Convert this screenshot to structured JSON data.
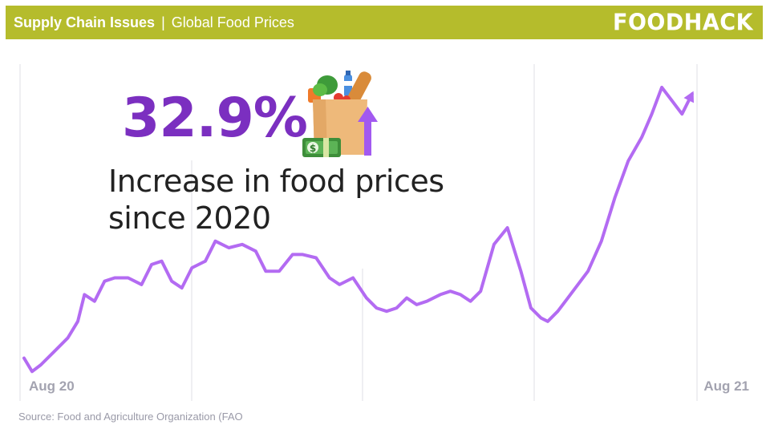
{
  "header": {
    "title_bold": "Supply Chain Issues",
    "separator": "|",
    "title_rest": "Global Food Prices",
    "brand": "FOODHACK"
  },
  "callout": {
    "value": "32.9%",
    "text_line1": "Increase in food prices",
    "text_line2": "since 2020",
    "icon": "grocery-bag-with-up-arrow-and-money-icon"
  },
  "source": "Source: Food and Agriculture Organization (FAO",
  "colors": {
    "header_bg": "#b5bc2c",
    "line": "#b36bf2",
    "accent": "#7b2fc0",
    "gridline": "#e4e4e8",
    "tick_label": "#a3a3b0"
  },
  "chart_data": {
    "type": "line",
    "title": "",
    "xlabel": "",
    "ylabel": "",
    "x_tick_labels": [
      "Aug 20",
      "Aug 21"
    ],
    "grid": "vertical",
    "xlim": [
      0,
      100
    ],
    "ylim": [
      0,
      100
    ],
    "series": [
      {
        "values": [
          [
            0,
            14
          ],
          [
            1.2,
            10
          ],
          [
            2.5,
            12
          ],
          [
            4.5,
            16
          ],
          [
            6.5,
            20
          ],
          [
            8,
            25
          ],
          [
            9,
            33
          ],
          [
            10.5,
            31
          ],
          [
            12,
            37
          ],
          [
            13.5,
            38
          ],
          [
            15.5,
            38
          ],
          [
            17.5,
            36
          ],
          [
            19,
            42
          ],
          [
            20.5,
            43
          ],
          [
            22,
            37
          ],
          [
            23.5,
            35
          ],
          [
            25,
            41
          ],
          [
            27,
            43
          ],
          [
            28.5,
            49
          ],
          [
            30.5,
            47
          ],
          [
            32.5,
            48
          ],
          [
            34.5,
            46
          ],
          [
            36,
            40
          ],
          [
            38,
            40
          ],
          [
            40,
            45
          ],
          [
            41.5,
            45
          ],
          [
            43.5,
            44
          ],
          [
            45.5,
            38
          ],
          [
            47,
            36
          ],
          [
            49,
            38
          ],
          [
            51,
            32
          ],
          [
            52.5,
            29
          ],
          [
            54,
            28
          ],
          [
            55.5,
            29
          ],
          [
            57,
            32
          ],
          [
            58.5,
            30
          ],
          [
            60,
            31
          ],
          [
            62,
            33
          ],
          [
            63.5,
            34
          ],
          [
            65,
            33
          ],
          [
            66.5,
            31
          ],
          [
            68,
            34
          ],
          [
            70,
            48
          ],
          [
            72,
            53
          ],
          [
            74,
            40
          ],
          [
            75.5,
            29
          ],
          [
            77,
            26
          ],
          [
            78,
            25
          ],
          [
            79.5,
            28
          ],
          [
            81,
            32
          ],
          [
            82.5,
            36
          ],
          [
            84,
            40
          ],
          [
            86,
            49
          ],
          [
            88,
            62
          ],
          [
            90,
            73
          ],
          [
            92,
            80
          ],
          [
            93.5,
            87
          ],
          [
            95,
            95
          ],
          [
            96.5,
            91
          ],
          [
            98,
            87
          ],
          [
            99.5,
            93
          ]
        ]
      }
    ]
  }
}
